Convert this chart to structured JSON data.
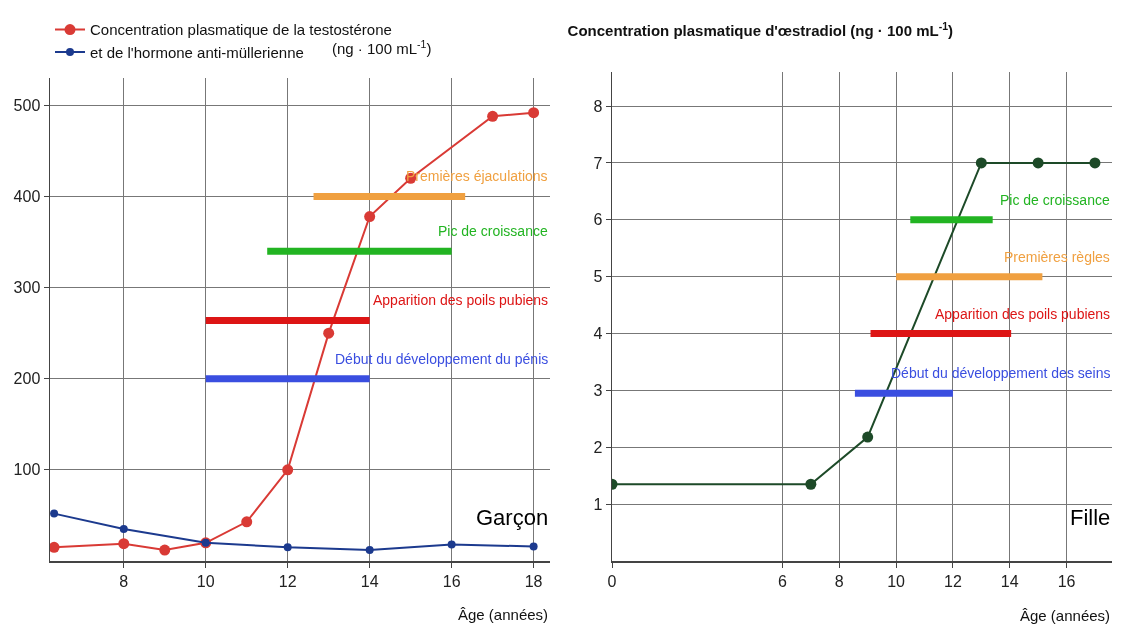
{
  "chart_data": [
    {
      "type": "line",
      "xlabel": "Âge (années)",
      "ylabel": "(ng · 100 mL$^{-1}$)",
      "legend": "top left",
      "grid": true,
      "xlim": [
        6.2,
        18.4
      ],
      "xticks": [
        8,
        10,
        12,
        14,
        16,
        18
      ],
      "ylim": [
        0,
        530
      ],
      "yticks": [
        100,
        200,
        300,
        400,
        500
      ],
      "annotations": [
        "Garçon"
      ],
      "series": [
        {
          "name": "Concentration plasmatique de la testostérone",
          "color": "#d93a35",
          "marker": "circle",
          "x": [
            6.3,
            8,
            9,
            10,
            11,
            12,
            13,
            14,
            15,
            17,
            18
          ],
          "values": [
            15,
            19,
            12,
            20,
            43,
            100,
            250,
            378,
            420,
            488,
            492
          ]
        },
        {
          "name": "et de l'hormone anti-müllerienne",
          "color": "#1c3a8e",
          "marker": "circle",
          "x": [
            6.3,
            8,
            10,
            12,
            14,
            16,
            18
          ],
          "values": [
            52,
            35,
            20,
            15,
            12,
            18,
            16
          ]
        },
        {
          "name": "Premières éjaculations",
          "color": "#f0a040",
          "marker": "none",
          "x": [
            12.63,
            16.33
          ],
          "values": [
            400,
            400
          ]
        },
        {
          "name": "Pic de croissance",
          "color": "#22b422",
          "marker": "none",
          "x": [
            11.5,
            16
          ],
          "values": [
            340,
            340
          ]
        },
        {
          "name": "Apparition des poils pubiens",
          "color": "#dd1515",
          "marker": "none",
          "x": [
            10,
            14
          ],
          "values": [
            264,
            264
          ]
        },
        {
          "name": "Début du développement du pénis",
          "color": "#3a4ee0",
          "marker": "none",
          "x": [
            10,
            14
          ],
          "values": [
            200,
            200
          ]
        }
      ]
    },
    {
      "type": "line",
      "title": "Concentration plasmatique d'œstradiol (ng · 100 mL$^{-1}$)",
      "xlabel": "Âge (années)",
      "grid": true,
      "xlim": [
        0,
        17.6
      ],
      "xticks": [
        0,
        6,
        8,
        10,
        12,
        14,
        16
      ],
      "ylim": [
        0,
        8.6
      ],
      "yticks": [
        1,
        2,
        3,
        4,
        5,
        6,
        7,
        8
      ],
      "annotations": [
        "Fille"
      ],
      "series": [
        {
          "color": "#1d4a28",
          "marker": "circle",
          "x": [
            0,
            7,
            9,
            13,
            15,
            17
          ],
          "values": [
            1.35,
            1.35,
            2.18,
            7,
            7,
            7
          ]
        },
        {
          "name": "Pic de croissance",
          "color": "#22b422",
          "marker": "none",
          "x": [
            10.5,
            13.4
          ],
          "values": [
            6,
            6
          ]
        },
        {
          "name": "Premières règles",
          "color": "#f0a040",
          "marker": "none",
          "x": [
            10,
            15.15
          ],
          "values": [
            5,
            5
          ]
        },
        {
          "name": "Apparition des poils pubiens",
          "color": "#dd1515",
          "marker": "none",
          "x": [
            9.1,
            14.05
          ],
          "values": [
            4,
            4
          ]
        },
        {
          "name": "Début du développement des seins",
          "color": "#3a4ee0",
          "marker": "none",
          "x": [
            8.55,
            12
          ],
          "values": [
            2.95,
            2.95
          ]
        }
      ]
    }
  ]
}
